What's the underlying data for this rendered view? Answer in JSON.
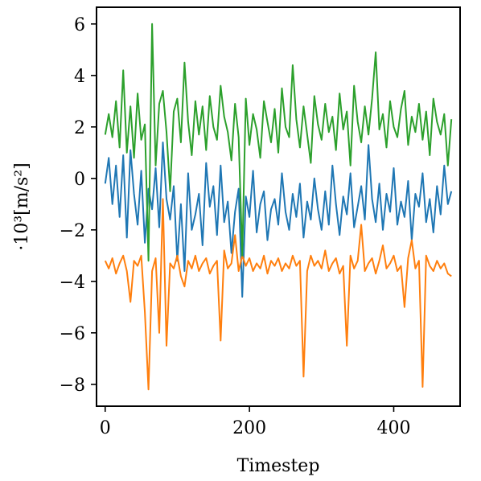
{
  "chart_data": {
    "type": "line",
    "xlabel": "Timestep",
    "ylabel": "·10³[m/s²]",
    "xlim": [
      -12,
      492
    ],
    "ylim": [
      -8.85,
      6.65
    ],
    "xticks": [
      0,
      200,
      400
    ],
    "yticks": [
      -8,
      -6,
      -4,
      -2,
      0,
      2,
      4,
      6
    ],
    "grid": false,
    "series": [
      {
        "color": "#1f77b4",
        "x": [
          0,
          5,
          10,
          15,
          20,
          25,
          30,
          35,
          40,
          45,
          50,
          55,
          60,
          65,
          70,
          75,
          80,
          85,
          90,
          95,
          100,
          105,
          110,
          115,
          120,
          125,
          130,
          135,
          140,
          145,
          150,
          155,
          160,
          165,
          170,
          175,
          180,
          185,
          190,
          195,
          200,
          205,
          210,
          215,
          220,
          225,
          230,
          235,
          240,
          245,
          250,
          255,
          260,
          265,
          270,
          275,
          280,
          285,
          290,
          295,
          300,
          305,
          310,
          315,
          320,
          325,
          330,
          335,
          340,
          345,
          350,
          355,
          360,
          365,
          370,
          375,
          380,
          385,
          390,
          395,
          400,
          405,
          410,
          415,
          420,
          425,
          430,
          435,
          440,
          445,
          450,
          455,
          460,
          465,
          470,
          475,
          480
        ],
        "y": [
          -0.2,
          0.8,
          -1.0,
          0.5,
          -1.5,
          0.9,
          -2.3,
          1.1,
          -0.6,
          -1.8,
          0.3,
          -2.5,
          -0.4,
          -1.2,
          0.4,
          -1.9,
          1.4,
          -0.8,
          -1.6,
          -0.3,
          -3.2,
          -1.0,
          -3.6,
          0.2,
          -2.0,
          -1.4,
          -0.6,
          -2.6,
          0.6,
          -1.1,
          -0.3,
          -2.2,
          0.5,
          -1.7,
          -0.9,
          -2.9,
          -1.3,
          -0.4,
          -4.6,
          -0.7,
          -1.5,
          0.3,
          -2.1,
          -1.0,
          -0.5,
          -2.4,
          -1.2,
          -0.8,
          -1.8,
          0.2,
          -1.3,
          -2.0,
          -0.6,
          -1.5,
          -0.2,
          -2.3,
          -0.9,
          -1.6,
          0.0,
          -1.2,
          -2.0,
          -0.5,
          -1.8,
          0.5,
          -1.0,
          -2.2,
          -0.7,
          -1.4,
          0.2,
          -1.9,
          -1.1,
          -0.3,
          -1.6,
          1.3,
          -0.8,
          -1.7,
          -0.2,
          -2.0,
          -0.6,
          -1.3,
          0.4,
          -1.8,
          -0.9,
          -1.5,
          -0.1,
          -2.4,
          -0.6,
          -1.1,
          0.2,
          -1.7,
          -0.8,
          -2.1,
          -0.3,
          -1.4,
          0.5,
          -1.0,
          -0.5
        ]
      },
      {
        "color": "#ff7f0e",
        "x": [
          0,
          5,
          10,
          15,
          20,
          25,
          30,
          35,
          40,
          45,
          50,
          55,
          60,
          65,
          70,
          75,
          80,
          85,
          90,
          95,
          100,
          105,
          110,
          115,
          120,
          125,
          130,
          135,
          140,
          145,
          150,
          155,
          160,
          165,
          170,
          175,
          180,
          185,
          190,
          195,
          200,
          205,
          210,
          215,
          220,
          225,
          230,
          235,
          240,
          245,
          250,
          255,
          260,
          265,
          270,
          275,
          280,
          285,
          290,
          295,
          300,
          305,
          310,
          315,
          320,
          325,
          330,
          335,
          340,
          345,
          350,
          355,
          360,
          365,
          370,
          375,
          380,
          385,
          390,
          395,
          400,
          405,
          410,
          415,
          420,
          425,
          430,
          435,
          440,
          445,
          450,
          455,
          460,
          465,
          470,
          475,
          480
        ],
        "y": [
          -3.2,
          -3.5,
          -3.1,
          -3.7,
          -3.3,
          -3.0,
          -3.6,
          -4.8,
          -3.2,
          -3.4,
          -3.0,
          -5.2,
          -8.2,
          -3.6,
          -3.1,
          -6.0,
          -0.8,
          -6.5,
          -3.3,
          -3.5,
          -3.0,
          -3.8,
          -4.2,
          -3.2,
          -3.5,
          -3.0,
          -3.6,
          -3.3,
          -3.1,
          -3.7,
          -3.4,
          -3.2,
          -6.3,
          -2.8,
          -3.5,
          -3.3,
          -2.2,
          -3.6,
          -3.0,
          -3.4,
          -3.1,
          -3.6,
          -3.3,
          -3.5,
          -3.0,
          -3.7,
          -3.2,
          -3.4,
          -3.1,
          -3.6,
          -3.3,
          -3.5,
          -3.0,
          -3.4,
          -3.2,
          -7.7,
          -3.6,
          -3.0,
          -3.4,
          -3.2,
          -3.5,
          -2.8,
          -3.6,
          -3.3,
          -3.1,
          -3.7,
          -3.4,
          -6.5,
          -3.0,
          -3.5,
          -3.2,
          -1.8,
          -3.6,
          -3.3,
          -3.1,
          -3.7,
          -3.2,
          -2.6,
          -3.5,
          -3.3,
          -3.0,
          -3.6,
          -3.4,
          -5.0,
          -3.1,
          -2.4,
          -3.5,
          -3.2,
          -8.1,
          -3.0,
          -3.4,
          -3.6,
          -3.2,
          -3.5,
          -3.3,
          -3.7,
          -3.8
        ]
      },
      {
        "color": "#2ca02c",
        "x": [
          0,
          5,
          10,
          15,
          20,
          25,
          30,
          35,
          40,
          45,
          50,
          55,
          60,
          65,
          70,
          75,
          80,
          85,
          90,
          95,
          100,
          105,
          110,
          115,
          120,
          125,
          130,
          135,
          140,
          145,
          150,
          155,
          160,
          165,
          170,
          175,
          180,
          185,
          190,
          195,
          200,
          205,
          210,
          215,
          220,
          225,
          230,
          235,
          240,
          245,
          250,
          255,
          260,
          265,
          270,
          275,
          280,
          285,
          290,
          295,
          300,
          305,
          310,
          315,
          320,
          325,
          330,
          335,
          340,
          345,
          350,
          355,
          360,
          365,
          370,
          375,
          380,
          385,
          390,
          395,
          400,
          405,
          410,
          415,
          420,
          425,
          430,
          435,
          440,
          445,
          450,
          455,
          460,
          465,
          470,
          475,
          480
        ],
        "y": [
          1.7,
          2.5,
          1.6,
          3.0,
          1.2,
          4.2,
          1.0,
          2.8,
          0.8,
          3.3,
          1.5,
          2.1,
          -3.2,
          6.0,
          0.5,
          2.9,
          3.4,
          1.8,
          -0.5,
          2.6,
          3.1,
          1.4,
          4.5,
          2.2,
          0.9,
          3.0,
          1.7,
          2.8,
          1.1,
          3.2,
          2.0,
          1.5,
          3.6,
          2.4,
          1.8,
          0.7,
          2.9,
          1.6,
          -3.0,
          3.1,
          1.3,
          2.5,
          1.9,
          0.8,
          3.0,
          2.2,
          1.4,
          2.7,
          1.0,
          3.5,
          2.0,
          1.6,
          4.4,
          2.3,
          1.2,
          2.8,
          1.7,
          0.6,
          3.2,
          2.1,
          1.5,
          2.9,
          1.8,
          2.4,
          1.1,
          3.3,
          1.9,
          2.6,
          0.5,
          3.6,
          2.2,
          1.4,
          2.8,
          1.7,
          3.1,
          4.9,
          1.9,
          2.5,
          1.2,
          3.0,
          2.0,
          1.6,
          2.7,
          3.4,
          1.3,
          2.4,
          1.8,
          2.9,
          1.5,
          2.6,
          0.9,
          3.1,
          2.2,
          1.7,
          2.5,
          0.5,
          2.3
        ]
      }
    ]
  }
}
